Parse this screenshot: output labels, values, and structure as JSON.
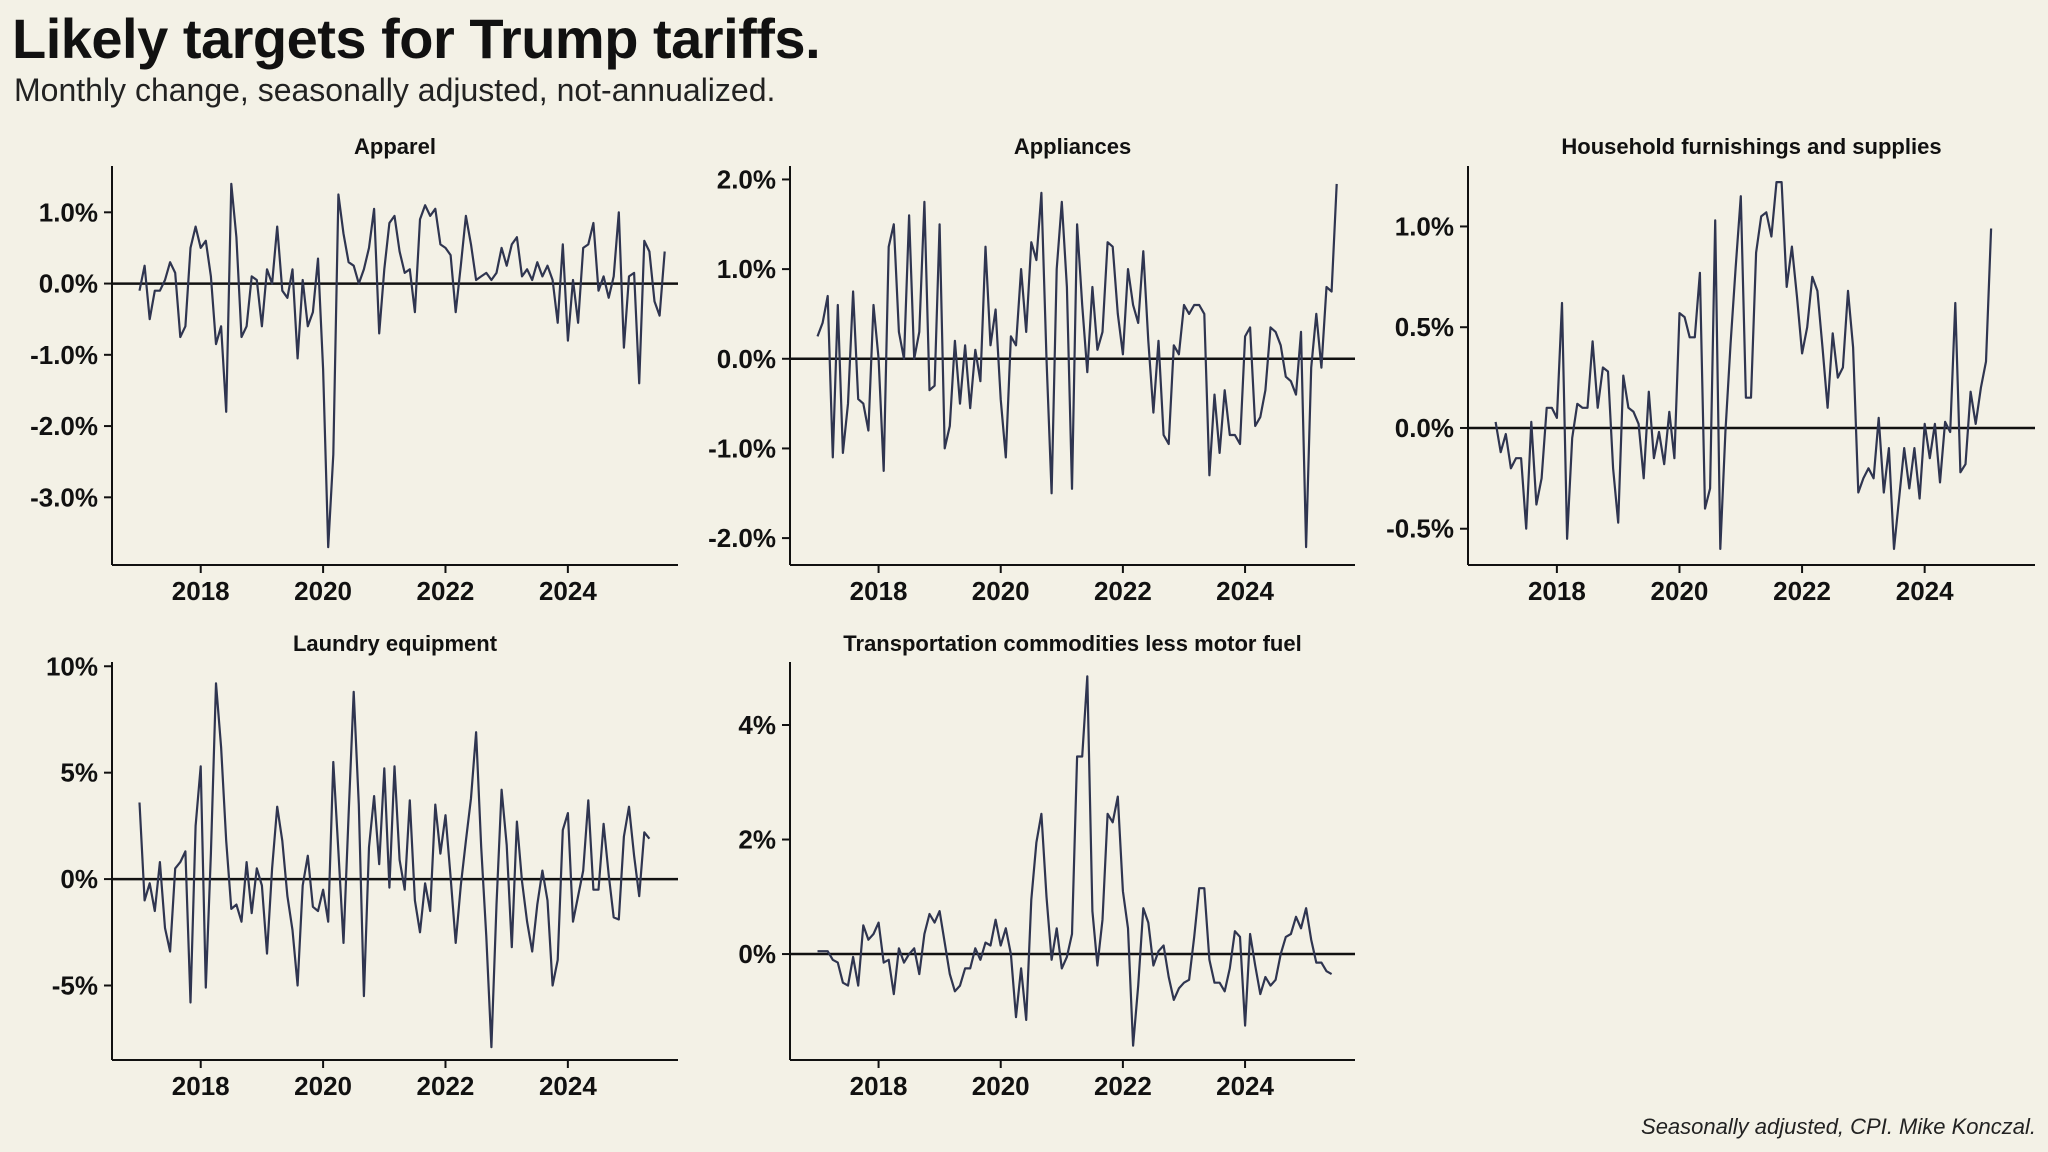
{
  "title": "Likely targets for Trump tariffs.",
  "subtitle": "Monthly change, seasonally adjusted, not-annualized.",
  "source": "Seasonally adjusted, CPI. Mike Konczal.",
  "colors": {
    "background": "#f3f1e6",
    "line": "#2f3550",
    "axis": "#111111"
  },
  "chart_data": [
    {
      "type": "line",
      "title": "Apparel",
      "xlabel": "",
      "ylabel": "",
      "x_start": 2017.0,
      "x_step": 0.083333,
      "xlim": [
        2016.55,
        2025.8
      ],
      "ylim": [
        -3.95,
        1.65
      ],
      "xticks": [
        2018,
        2020,
        2022,
        2024
      ],
      "xtick_labels": [
        "2018",
        "2020",
        "2022",
        "2024"
      ],
      "yticks": [
        1,
        0,
        -1,
        -2,
        -3
      ],
      "ytick_labels": [
        "1.0%",
        "0.0%",
        "-1.0%",
        "-2.0%",
        "-3.0%"
      ],
      "values": [
        -0.1,
        0.25,
        -0.5,
        -0.1,
        -0.1,
        0.05,
        0.3,
        0.15,
        -0.75,
        -0.6,
        0.5,
        0.8,
        0.5,
        0.6,
        0.1,
        -0.85,
        -0.6,
        -1.8,
        1.4,
        0.65,
        -0.75,
        -0.6,
        0.1,
        0.05,
        -0.6,
        0.2,
        0.0,
        0.8,
        -0.1,
        -0.2,
        0.2,
        -1.05,
        0.05,
        -0.6,
        -0.4,
        0.35,
        -1.2,
        -3.7,
        -2.4,
        1.25,
        0.7,
        0.3,
        0.25,
        0.0,
        0.2,
        0.5,
        1.05,
        -0.7,
        0.2,
        0.85,
        0.95,
        0.45,
        0.15,
        0.2,
        -0.4,
        0.9,
        1.1,
        0.95,
        1.05,
        0.55,
        0.5,
        0.4,
        -0.4,
        0.25,
        0.95,
        0.55,
        0.05,
        0.1,
        0.15,
        0.05,
        0.15,
        0.5,
        0.25,
        0.55,
        0.65,
        0.1,
        0.2,
        0.05,
        0.3,
        0.1,
        0.25,
        0.05,
        -0.55,
        0.55,
        -0.8,
        0.05,
        -0.55,
        0.5,
        0.55,
        0.85,
        -0.1,
        0.1,
        -0.2,
        0.1,
        1.0,
        -0.9,
        0.1,
        0.15,
        -1.4,
        0.6,
        0.45,
        -0.25,
        -0.45,
        0.45
      ]
    },
    {
      "type": "line",
      "title": "Appliances",
      "xlabel": "",
      "ylabel": "",
      "x_start": 2017.0,
      "x_step": 0.083333,
      "xlim": [
        2016.55,
        2025.8
      ],
      "ylim": [
        -2.3,
        2.15
      ],
      "xticks": [
        2018,
        2020,
        2022,
        2024
      ],
      "xtick_labels": [
        "2018",
        "2020",
        "2022",
        "2024"
      ],
      "yticks": [
        2,
        1,
        0,
        -1,
        -2
      ],
      "ytick_labels": [
        "2.0%",
        "1.0%",
        "0.0%",
        "-1.0%",
        "-2.0%"
      ],
      "values": [
        0.25,
        0.4,
        0.7,
        -1.1,
        0.6,
        -1.05,
        -0.5,
        0.75,
        -0.45,
        -0.5,
        -0.8,
        0.6,
        0.0,
        -1.25,
        1.25,
        1.5,
        0.3,
        0.0,
        1.6,
        0.0,
        0.3,
        1.75,
        -0.35,
        -0.3,
        1.5,
        -1.0,
        -0.75,
        0.2,
        -0.5,
        0.15,
        -0.55,
        0.1,
        -0.25,
        1.25,
        0.15,
        0.55,
        -0.45,
        -1.1,
        0.25,
        0.15,
        1.0,
        0.3,
        1.3,
        1.1,
        1.85,
        0.0,
        -1.5,
        1.0,
        1.75,
        0.8,
        -1.45,
        1.5,
        0.6,
        -0.15,
        0.8,
        0.1,
        0.3,
        1.3,
        1.25,
        0.5,
        0.05,
        1.0,
        0.6,
        0.4,
        1.2,
        0.2,
        -0.6,
        0.2,
        -0.85,
        -0.95,
        0.15,
        0.05,
        0.6,
        0.5,
        0.6,
        0.6,
        0.5,
        -1.3,
        -0.4,
        -1.05,
        -0.35,
        -0.85,
        -0.85,
        -0.95,
        0.25,
        0.35,
        -0.75,
        -0.65,
        -0.35,
        0.35,
        0.3,
        0.15,
        -0.2,
        -0.25,
        -0.4,
        0.3,
        -2.1,
        -0.1,
        0.5,
        -0.1,
        0.8,
        0.75,
        1.95
      ]
    },
    {
      "type": "line",
      "title": "Household furnishings and supplies",
      "xlabel": "",
      "ylabel": "",
      "x_start": 2017.0,
      "x_step": 0.083333,
      "xlim": [
        2016.55,
        2025.8
      ],
      "ylim": [
        -0.68,
        1.3
      ],
      "xticks": [
        2018,
        2020,
        2022,
        2024
      ],
      "xtick_labels": [
        "2018",
        "2020",
        "2022",
        "2024"
      ],
      "yticks": [
        1,
        0.5,
        0,
        -0.5
      ],
      "ytick_labels": [
        "1.0%",
        "0.5%",
        "0.0%",
        "-0.5%"
      ],
      "values": [
        0.03,
        -0.12,
        -0.03,
        -0.2,
        -0.15,
        -0.15,
        -0.5,
        0.03,
        -0.38,
        -0.25,
        0.1,
        0.1,
        0.05,
        0.62,
        -0.55,
        -0.05,
        0.12,
        0.1,
        0.1,
        0.43,
        0.1,
        0.3,
        0.28,
        -0.2,
        -0.47,
        0.26,
        0.1,
        0.08,
        0.02,
        -0.25,
        0.18,
        -0.15,
        -0.02,
        -0.18,
        0.08,
        -0.15,
        0.57,
        0.55,
        0.45,
        0.45,
        0.77,
        -0.4,
        -0.3,
        1.03,
        -0.6,
        -0.02,
        0.42,
        0.8,
        1.15,
        0.15,
        0.15,
        0.87,
        1.05,
        1.07,
        0.95,
        1.22,
        1.22,
        0.7,
        0.9,
        0.65,
        0.37,
        0.5,
        0.75,
        0.68,
        0.4,
        0.1,
        0.47,
        0.25,
        0.3,
        0.68,
        0.4,
        -0.32,
        -0.25,
        -0.2,
        -0.25,
        0.05,
        -0.32,
        -0.1,
        -0.6,
        -0.35,
        -0.1,
        -0.3,
        -0.1,
        -0.35,
        0.02,
        -0.15,
        0.02,
        -0.27,
        0.03,
        -0.02,
        0.62,
        -0.22,
        -0.18,
        0.18,
        0.02,
        0.2,
        0.33,
        0.99
      ]
    },
    {
      "type": "line",
      "title": "Laundry equipment",
      "xlabel": "",
      "ylabel": "",
      "x_start": 2017.0,
      "x_step": 0.083333,
      "xlim": [
        2016.55,
        2025.8
      ],
      "ylim": [
        -8.5,
        10.2
      ],
      "xticks": [
        2018,
        2020,
        2022,
        2024
      ],
      "xtick_labels": [
        "2018",
        "2020",
        "2022",
        "2024"
      ],
      "yticks": [
        10,
        5,
        0,
        -5
      ],
      "ytick_labels": [
        "10%",
        "5%",
        "0%",
        "-5%"
      ],
      "values": [
        3.6,
        -1.0,
        -0.2,
        -1.5,
        0.8,
        -2.3,
        -3.4,
        0.5,
        0.8,
        1.3,
        -5.8,
        2.5,
        5.3,
        -5.1,
        1.2,
        9.2,
        6.2,
        1.8,
        -1.4,
        -1.2,
        -2.0,
        0.8,
        -1.6,
        0.5,
        -0.3,
        -3.5,
        0.5,
        3.4,
        1.8,
        -0.8,
        -2.4,
        -5.0,
        -0.3,
        1.1,
        -1.3,
        -1.5,
        -0.5,
        -2.0,
        5.5,
        1.3,
        -3.0,
        3.0,
        8.8,
        3.5,
        -5.5,
        1.5,
        3.9,
        0.7,
        5.2,
        -0.4,
        5.3,
        0.9,
        -0.5,
        3.7,
        -1.0,
        -2.5,
        -0.2,
        -1.5,
        3.5,
        1.2,
        3.0,
        0.1,
        -3.0,
        -0.3,
        1.8,
        3.8,
        6.9,
        1.5,
        -2.7,
        -7.9,
        -1.2,
        4.2,
        1.6,
        -3.2,
        2.7,
        -0.1,
        -2.0,
        -3.4,
        -1.2,
        0.4,
        -1.0,
        -5.0,
        -3.8,
        2.3,
        3.1,
        -2.0,
        -0.8,
        0.4,
        3.7,
        -0.5,
        -0.5,
        2.6,
        0.2,
        -1.8,
        -1.9,
        2.0,
        3.4,
        1.1,
        -0.8,
        2.2,
        1.9
      ]
    },
    {
      "type": "line",
      "title": "Transportation commodities less motor fuel",
      "xlabel": "",
      "ylabel": "",
      "x_start": 2017.0,
      "x_step": 0.083333,
      "xlim": [
        2016.55,
        2025.8
      ],
      "ylim": [
        -1.85,
        5.1
      ],
      "xticks": [
        2018,
        2020,
        2022,
        2024
      ],
      "xtick_labels": [
        "2018",
        "2020",
        "2022",
        "2024"
      ],
      "yticks": [
        4,
        2,
        0
      ],
      "ytick_labels": [
        "4%",
        "2%",
        "0%"
      ],
      "values": [
        0.05,
        0.05,
        0.05,
        -0.1,
        -0.15,
        -0.5,
        -0.55,
        -0.05,
        -0.55,
        0.5,
        0.25,
        0.35,
        0.55,
        -0.15,
        -0.1,
        -0.7,
        0.1,
        -0.15,
        0.0,
        0.1,
        -0.35,
        0.35,
        0.7,
        0.55,
        0.75,
        0.2,
        -0.35,
        -0.65,
        -0.55,
        -0.25,
        -0.25,
        0.1,
        -0.1,
        0.2,
        0.15,
        0.6,
        0.15,
        0.45,
        0.0,
        -1.1,
        -0.25,
        -1.15,
        0.95,
        1.95,
        2.45,
        1.0,
        -0.1,
        0.45,
        -0.25,
        -0.05,
        0.35,
        3.45,
        3.45,
        4.85,
        0.75,
        -0.2,
        0.6,
        2.45,
        2.3,
        2.75,
        1.1,
        0.45,
        -1.6,
        -0.55,
        0.8,
        0.55,
        -0.2,
        0.05,
        0.15,
        -0.4,
        -0.8,
        -0.6,
        -0.5,
        -0.45,
        0.3,
        1.15,
        1.15,
        -0.1,
        -0.5,
        -0.5,
        -0.65,
        -0.25,
        0.4,
        0.3,
        -1.25,
        0.35,
        -0.2,
        -0.7,
        -0.4,
        -0.55,
        -0.45,
        0.0,
        0.3,
        0.35,
        0.65,
        0.45,
        0.8,
        0.25,
        -0.15,
        -0.15,
        -0.3,
        -0.35
      ]
    }
  ]
}
